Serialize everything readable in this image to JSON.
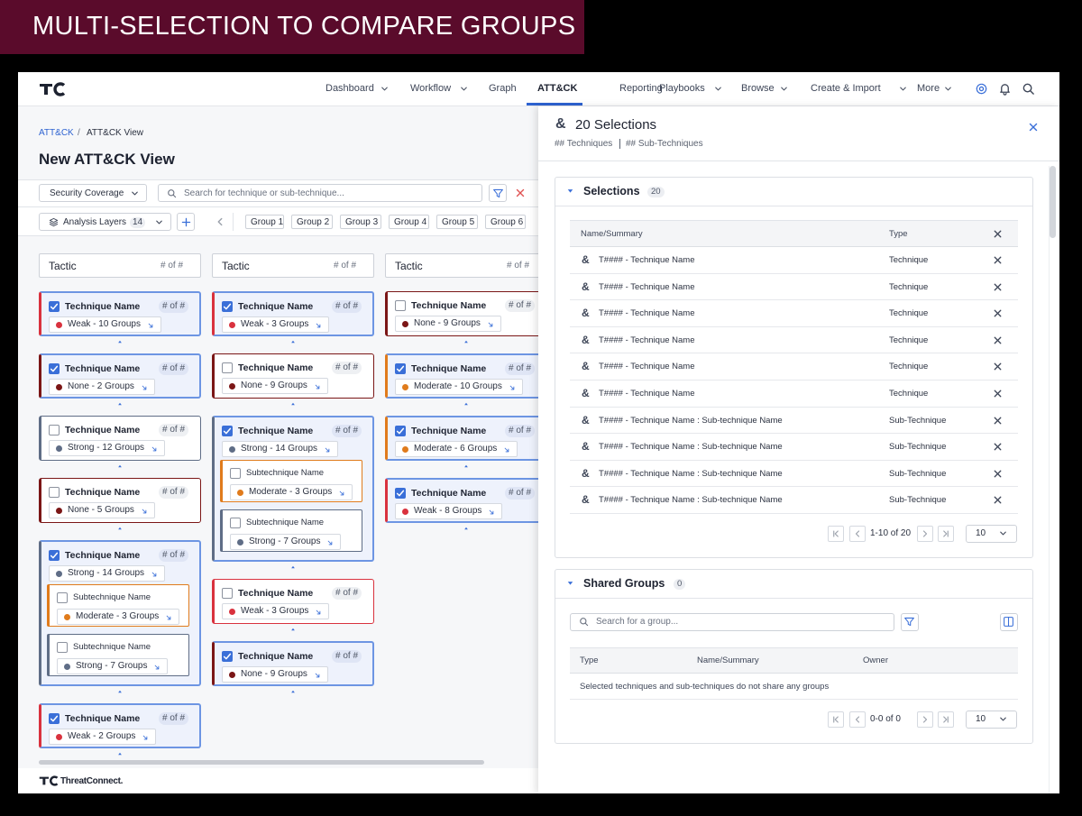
{
  "banner": "MULTI-SELECTION TO COMPARE GROUPS",
  "nav": {
    "items": [
      {
        "label": "Dashboard",
        "dropdown": true
      },
      {
        "label": "Workflow",
        "dropdown": true
      },
      {
        "label": "Graph",
        "dropdown": false
      },
      {
        "label": "ATT&CK",
        "dropdown": false
      },
      {
        "label": "Reporting",
        "dropdown": false
      },
      {
        "label": "Playbooks",
        "dropdown": true
      },
      {
        "label": "Browse",
        "dropdown": true
      },
      {
        "label": "Create & Import",
        "dropdown": true
      },
      {
        "label": "More",
        "dropdown": true
      }
    ],
    "active": 3
  },
  "breadcrumb": [
    "ATT&CK",
    "ATT&CK View"
  ],
  "breadcrumb_separator": "/",
  "page_title": "New ATT&CK View",
  "toolbar": {
    "coverage": "Security Coverage",
    "search_placeholder": "Search for technique or sub-technique...",
    "layers": "Analysis Layers",
    "layers_count": "14",
    "groups": [
      "Group 1",
      "Group 2",
      "Group 3",
      "Group 4",
      "Group 5",
      "Group 6"
    ]
  },
  "columns": [
    {
      "title": "Tactic",
      "count": "# of #",
      "cards": [
        {
          "name": "Technique Name",
          "count": "# of #",
          "checked": true,
          "level": "Weak - 10 Groups",
          "color": "#d9323e",
          "subs": []
        },
        {
          "name": "Technique Name",
          "count": "# of #",
          "checked": true,
          "level": "None - 2 Groups",
          "color": "#7b1616",
          "subs": []
        },
        {
          "name": "Technique Name",
          "count": "# of #",
          "checked": false,
          "level": "Strong - 12 Groups",
          "color": "#5f6d86",
          "subs": []
        },
        {
          "name": "Technique Name",
          "count": "# of #",
          "checked": false,
          "level": "None - 5 Groups",
          "color": "#7b1616",
          "subs": []
        },
        {
          "name": "Technique Name",
          "count": "# of #",
          "checked": true,
          "level": "Strong - 14 Groups",
          "color": "#5f6d86",
          "subs": [
            {
              "name": "Subtechnique Name",
              "level": "Moderate - 3 Groups",
              "color": "#e07b1c"
            },
            {
              "name": "Subtechnique Name",
              "level": "Strong - 7 Groups",
              "color": "#5f6d86"
            }
          ]
        },
        {
          "name": "Technique Name",
          "count": "# of #",
          "checked": true,
          "level": "Weak - 2 Groups",
          "color": "#d9323e",
          "subs": []
        }
      ]
    },
    {
      "title": "Tactic",
      "count": "# of #",
      "cards": [
        {
          "name": "Technique Name",
          "count": "# of #",
          "checked": true,
          "level": "Weak - 3 Groups",
          "color": "#d9323e",
          "subs": []
        },
        {
          "name": "Technique Name",
          "count": "# of #",
          "checked": false,
          "level": "None - 9 Groups",
          "color": "#7b1616",
          "subs": []
        },
        {
          "name": "Technique Name",
          "count": "# of #",
          "checked": true,
          "level": "Strong - 14 Groups",
          "color": "#5f6d86",
          "subs": [
            {
              "name": "Subtechnique Name",
              "level": "Moderate - 3 Groups",
              "color": "#e07b1c"
            },
            {
              "name": "Subtechnique Name",
              "level": "Strong - 7 Groups",
              "color": "#5f6d86"
            }
          ]
        },
        {
          "name": "Technique Name",
          "count": "# of #",
          "checked": false,
          "level": "Weak - 3 Groups",
          "color": "#d9323e",
          "subs": []
        },
        {
          "name": "Technique Name",
          "count": "# of #",
          "checked": true,
          "level": "None - 9 Groups",
          "color": "#7b1616",
          "subs": []
        }
      ]
    },
    {
      "title": "Tactic",
      "count": "# of #",
      "cards": [
        {
          "name": "Technique Name",
          "count": "# of #",
          "checked": false,
          "level": "None - 9 Groups",
          "color": "#7b1616",
          "subs": []
        },
        {
          "name": "Technique Name",
          "count": "# of #",
          "checked": true,
          "level": "Moderate - 10 Groups",
          "color": "#e07b1c",
          "subs": []
        },
        {
          "name": "Technique Name",
          "count": "# of #",
          "checked": true,
          "level": "Moderate - 6 Groups",
          "color": "#e07b1c",
          "subs": []
        },
        {
          "name": "Technique Name",
          "count": "# of #",
          "checked": true,
          "level": "Weak - 8 Groups",
          "color": "#d9323e",
          "subs": []
        }
      ]
    }
  ],
  "panel": {
    "icon": "&",
    "title": "20 Selections",
    "subtitle": [
      "## Techniques",
      "## Sub-Techniques"
    ],
    "selections": {
      "title": "Selections",
      "badge": "20",
      "headers": [
        "Name/Summary",
        "Type"
      ],
      "rows": [
        [
          "T#### - Technique Name",
          "Technique"
        ],
        [
          "T#### - Technique Name",
          "Technique"
        ],
        [
          "T#### - Technique Name",
          "Technique"
        ],
        [
          "T#### - Technique Name",
          "Technique"
        ],
        [
          "T#### - Technique Name",
          "Technique"
        ],
        [
          "T#### - Technique Name",
          "Technique"
        ],
        [
          "T#### - Technique Name : Sub-technique Name",
          "Sub-Technique"
        ],
        [
          "T#### - Technique Name : Sub-technique Name",
          "Sub-Technique"
        ],
        [
          "T#### - Technique Name : Sub-technique Name",
          "Sub-Technique"
        ],
        [
          "T#### - Technique Name : Sub-technique Name",
          "Sub-Technique"
        ]
      ],
      "range": "1-10 of 20",
      "page_size": "10"
    },
    "shared": {
      "title": "Shared Groups",
      "badge": "0",
      "search_placeholder": "Search for a group...",
      "headers": [
        "Type",
        "Name/Summary",
        "Owner"
      ],
      "empty": "Selected techniques and sub-techniques do not share any groups",
      "range": "0-0 of 0",
      "page_size": "10"
    }
  },
  "footer_brand": "ThreatConnect."
}
